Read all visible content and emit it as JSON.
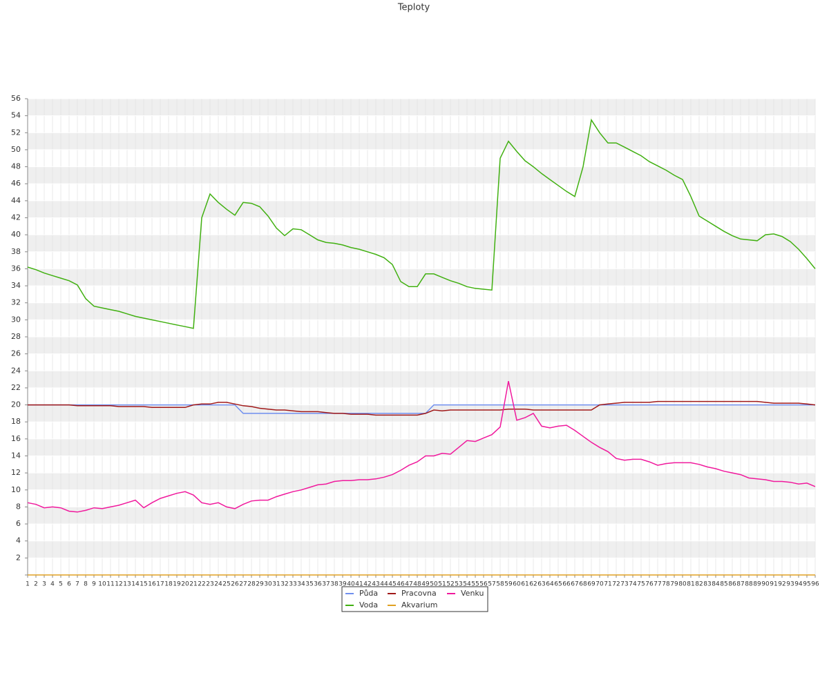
{
  "chart_data": {
    "type": "line",
    "title": "Teploty",
    "categories": [
      1,
      2,
      3,
      4,
      5,
      6,
      7,
      8,
      9,
      10,
      11,
      12,
      13,
      14,
      15,
      16,
      17,
      18,
      19,
      20,
      21,
      22,
      23,
      24,
      25,
      26,
      27,
      28,
      29,
      30,
      31,
      32,
      33,
      34,
      35,
      36,
      37,
      38,
      39,
      40,
      41,
      42,
      43,
      44,
      45,
      46,
      47,
      48,
      49,
      50,
      51,
      52,
      53,
      54,
      55,
      56,
      57,
      58,
      59,
      60,
      61,
      62,
      63,
      64,
      65,
      66,
      67,
      68,
      69,
      70,
      71,
      72,
      73,
      74,
      75,
      76,
      77,
      78,
      79,
      80,
      81,
      82,
      83,
      84,
      85,
      86,
      87,
      88,
      89,
      90,
      91,
      92,
      93,
      94,
      95,
      96
    ],
    "ylim": [
      0,
      56
    ],
    "yticks": [
      2,
      4,
      6,
      8,
      10,
      12,
      14,
      16,
      18,
      20,
      22,
      24,
      26,
      28,
      30,
      32,
      34,
      36,
      38,
      40,
      42,
      44,
      46,
      48,
      50,
      52,
      54,
      56
    ],
    "grid": true,
    "series": [
      {
        "name": "Půda",
        "color": "#6f8fef",
        "values": [
          20,
          20,
          20,
          20,
          20,
          20,
          20,
          20,
          20,
          20,
          20,
          20,
          20,
          20,
          20,
          20,
          20,
          20,
          20,
          20,
          20,
          20,
          20,
          20,
          20,
          20,
          19,
          19,
          19,
          19,
          19,
          19,
          19,
          19,
          19,
          19,
          19,
          19,
          19,
          19,
          19,
          19,
          19,
          19,
          19,
          19,
          19,
          19,
          19,
          20,
          20,
          20,
          20,
          20,
          20,
          20,
          20,
          20,
          20,
          20,
          20,
          20,
          20,
          20,
          20,
          20,
          20,
          20,
          20,
          20,
          20,
          20,
          20,
          20,
          20,
          20,
          20,
          20,
          20,
          20,
          20,
          20,
          20,
          20,
          20,
          20,
          20,
          20,
          20,
          20,
          20,
          20,
          20,
          20,
          20,
          20
        ]
      },
      {
        "name": "Voda",
        "color": "#40b010",
        "values": [
          36.2,
          35.9,
          35.5,
          35.2,
          34.9,
          34.6,
          34.1,
          32.5,
          31.6,
          31.4,
          31.2,
          31.0,
          30.7,
          30.4,
          30.2,
          30.0,
          29.8,
          29.6,
          29.4,
          29.2,
          29.0,
          42.0,
          44.8,
          43.8,
          43.0,
          42.3,
          43.8,
          43.7,
          43.3,
          42.2,
          40.8,
          39.9,
          40.7,
          40.6,
          40.0,
          39.4,
          39.1,
          39.0,
          38.8,
          38.5,
          38.3,
          38.0,
          37.7,
          37.3,
          36.5,
          34.5,
          33.9,
          33.9,
          35.4,
          35.4,
          35.0,
          34.6,
          34.3,
          33.9,
          33.7,
          33.6,
          33.5,
          49.0,
          51.0,
          49.8,
          48.7,
          48.0,
          47.2,
          46.5,
          45.8,
          45.1,
          44.5,
          48.0,
          53.5,
          52.0,
          50.8,
          50.8,
          50.3,
          49.8,
          49.3,
          48.6,
          48.1,
          47.6,
          47.0,
          46.5,
          44.5,
          42.2,
          41.6,
          41.0,
          40.4,
          39.9,
          39.5,
          39.4,
          39.3,
          40.0,
          40.1,
          39.8,
          39.2,
          38.3,
          37.2,
          36.0
        ]
      },
      {
        "name": "Pracovna",
        "color": "#a01818",
        "values": [
          20,
          20,
          20,
          20,
          20,
          20,
          19.9,
          19.9,
          19.9,
          19.9,
          19.9,
          19.8,
          19.8,
          19.8,
          19.8,
          19.7,
          19.7,
          19.7,
          19.7,
          19.7,
          20.0,
          20.1,
          20.1,
          20.3,
          20.3,
          20.1,
          19.9,
          19.8,
          19.6,
          19.5,
          19.4,
          19.4,
          19.3,
          19.2,
          19.2,
          19.2,
          19.1,
          19.0,
          19.0,
          18.9,
          18.9,
          18.9,
          18.8,
          18.8,
          18.8,
          18.8,
          18.8,
          18.8,
          19.0,
          19.4,
          19.3,
          19.4,
          19.4,
          19.4,
          19.4,
          19.4,
          19.4,
          19.4,
          19.5,
          19.5,
          19.5,
          19.4,
          19.4,
          19.4,
          19.4,
          19.4,
          19.4,
          19.4,
          19.4,
          20.0,
          20.1,
          20.2,
          20.3,
          20.3,
          20.3,
          20.3,
          20.4,
          20.4,
          20.4,
          20.4,
          20.4,
          20.4,
          20.4,
          20.4,
          20.4,
          20.4,
          20.4,
          20.4,
          20.4,
          20.3,
          20.2,
          20.2,
          20.2,
          20.2,
          20.1,
          20.0
        ]
      },
      {
        "name": "Akvarium",
        "color": "#e0a020",
        "values": [
          0,
          0,
          0,
          0,
          0,
          0,
          0,
          0,
          0,
          0,
          0,
          0,
          0,
          0,
          0,
          0,
          0,
          0,
          0,
          0,
          0,
          0,
          0,
          0,
          0,
          0,
          0,
          0,
          0,
          0,
          0,
          0,
          0,
          0,
          0,
          0,
          0,
          0,
          0,
          0,
          0,
          0,
          0,
          0,
          0,
          0,
          0,
          0,
          0,
          0,
          0,
          0,
          0,
          0,
          0,
          0,
          0,
          0,
          0,
          0,
          0,
          0,
          0,
          0,
          0,
          0,
          0,
          0,
          0,
          0,
          0,
          0,
          0,
          0,
          0,
          0,
          0,
          0,
          0,
          0,
          0,
          0,
          0,
          0,
          0,
          0,
          0,
          0,
          0,
          0,
          0,
          0,
          0,
          0,
          0,
          0
        ]
      },
      {
        "name": "Venku",
        "color": "#f0189c",
        "values": [
          8.5,
          8.3,
          7.9,
          8.0,
          7.9,
          7.5,
          7.4,
          7.6,
          7.9,
          7.8,
          8.0,
          8.2,
          8.5,
          8.8,
          7.9,
          8.5,
          9.0,
          9.3,
          9.6,
          9.8,
          9.4,
          8.5,
          8.3,
          8.5,
          8.0,
          7.8,
          8.3,
          8.7,
          8.8,
          8.8,
          9.2,
          9.5,
          9.8,
          10.0,
          10.3,
          10.6,
          10.7,
          11.0,
          11.1,
          11.1,
          11.2,
          11.2,
          11.3,
          11.5,
          11.8,
          12.3,
          12.9,
          13.3,
          14.0,
          14.0,
          14.3,
          14.2,
          15.0,
          15.8,
          15.7,
          16.1,
          16.5,
          17.4,
          22.8,
          18.2,
          18.5,
          19.0,
          17.5,
          17.3,
          17.5,
          17.6,
          17.0,
          16.3,
          15.6,
          15.0,
          14.5,
          13.7,
          13.5,
          13.6,
          13.6,
          13.3,
          12.9,
          13.1,
          13.2,
          13.2,
          13.2,
          13.0,
          12.7,
          12.5,
          12.2,
          12.0,
          11.8,
          11.4,
          11.3,
          11.2,
          11.0,
          11.0,
          10.9,
          10.7,
          10.8,
          10.4
        ]
      }
    ]
  }
}
